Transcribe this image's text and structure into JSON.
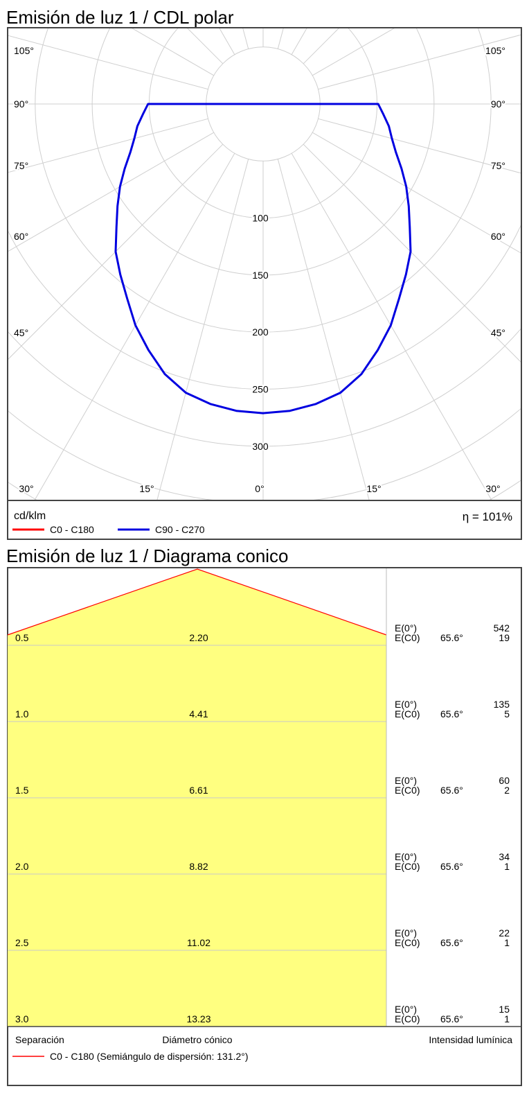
{
  "polar": {
    "title": "Emisión de luz 1 / CDL polar",
    "unit": "cd/klm",
    "efficiency": "η = 101%",
    "legend": [
      {
        "label": "C0 - C180",
        "color": "#ff0000"
      },
      {
        "label": "C90 - C270",
        "color": "#0000e0"
      }
    ]
  },
  "cone": {
    "title": "Emisión de luz 1 / Diagrama conico",
    "footer": {
      "separation": "Separación",
      "diameter": "Diámetro cónico",
      "intensity": "Intensidad lumínica",
      "legend": "C0 - C180 (Semiángulo de dispersión: 131.2°)",
      "legend_color": "#ff0000"
    },
    "fill_color": "#ffff80",
    "rows": [
      {
        "sep": "0.5",
        "diam": "2.20",
        "e0_label": "E(0°)",
        "e0": "542",
        "ec0_label": "E(C0)",
        "angle": "65.6°",
        "ec0": "19"
      },
      {
        "sep": "1.0",
        "diam": "4.41",
        "e0_label": "E(0°)",
        "e0": "135",
        "ec0_label": "E(C0)",
        "angle": "65.6°",
        "ec0": "5"
      },
      {
        "sep": "1.5",
        "diam": "6.61",
        "e0_label": "E(0°)",
        "e0": "60",
        "ec0_label": "E(C0)",
        "angle": "65.6°",
        "ec0": "2"
      },
      {
        "sep": "2.0",
        "diam": "8.82",
        "e0_label": "E(0°)",
        "e0": "34",
        "ec0_label": "E(C0)",
        "angle": "65.6°",
        "ec0": "1"
      },
      {
        "sep": "2.5",
        "diam": "11.02",
        "e0_label": "E(0°)",
        "e0": "22",
        "ec0_label": "E(C0)",
        "angle": "65.6°",
        "ec0": "1"
      },
      {
        "sep": "3.0",
        "diam": "13.23",
        "e0_label": "E(0°)",
        "e0": "15",
        "ec0_label": "E(C0)",
        "angle": "65.6°",
        "ec0": "1"
      }
    ]
  },
  "chart_data": [
    {
      "type": "polar",
      "title": "Emisión de luz 1 / CDL polar",
      "unit": "cd/klm",
      "ring_values": [
        100,
        150,
        200,
        250,
        300
      ],
      "ring_labels": [
        "100",
        "150",
        "200",
        "250",
        "300"
      ],
      "side_angle_labels": [
        "105°",
        "90°",
        "75°",
        "60°",
        "45°"
      ],
      "bottom_angle_labels": [
        "30°",
        "15°",
        "0°",
        "15°",
        "30°"
      ],
      "grid": true,
      "series": [
        {
          "name": "C90 - C270",
          "color": "#0000e0",
          "angles": [
            0,
            5,
            10,
            15,
            20,
            25,
            30,
            35,
            40,
            45,
            50,
            55,
            60,
            65,
            70,
            75,
            80,
            85,
            90
          ],
          "values": [
            271,
            270,
            267,
            262,
            252,
            238,
            224,
            208,
            195,
            183,
            168,
            156,
            145,
            134,
            124,
            117,
            112,
            106,
            101
          ]
        }
      ]
    },
    {
      "type": "table",
      "title": "Emisión de luz 1 / Diagrama conico",
      "columns": [
        "Separación",
        "Diámetro cónico",
        "Intensidad lumínica"
      ],
      "half_angle": 131.2
    }
  ]
}
